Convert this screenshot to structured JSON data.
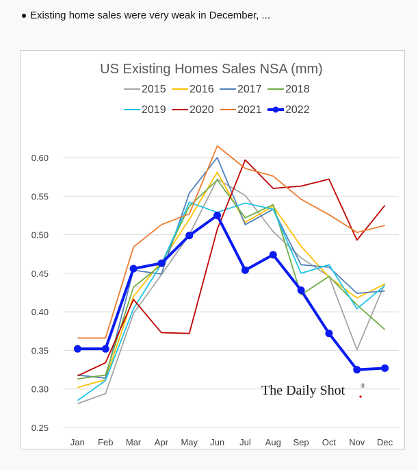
{
  "bullet": {
    "text": "Existing home sales were very weak in December, ..."
  },
  "watermark": {
    "text": "The Daily Shot",
    "mark": "®"
  },
  "chart_data": {
    "type": "line",
    "title": "US Existing Homes Sales NSA (mm)",
    "xlabel": "",
    "ylabel": "",
    "categories": [
      "Jan",
      "Feb",
      "Mar",
      "Apr",
      "May",
      "Jun",
      "Jul",
      "Aug",
      "Sep",
      "Oct",
      "Nov",
      "Dec"
    ],
    "ylim": [
      0.25,
      0.6
    ],
    "yticks": [
      "0.60",
      "0.55",
      "0.50",
      "0.45",
      "0.40",
      "0.35",
      "0.30",
      "0.25"
    ],
    "ytick_values": [
      0.6,
      0.55,
      0.5,
      0.45,
      0.4,
      0.35,
      0.3,
      0.25
    ],
    "grid": "horizontal",
    "legend_position": "top",
    "series": [
      {
        "name": "2015",
        "color": "#a6a6a6",
        "values": [
          0.281,
          0.294,
          0.398,
          0.448,
          0.5,
          0.572,
          0.551,
          0.504,
          0.47,
          0.446,
          0.351,
          0.437
        ]
      },
      {
        "name": "2016",
        "color": "#ffc000",
        "values": [
          0.302,
          0.312,
          0.42,
          0.465,
          0.52,
          0.581,
          0.516,
          0.537,
          0.485,
          0.445,
          0.418,
          0.436
        ]
      },
      {
        "name": "2017",
        "color": "#4f81bd",
        "values": [
          0.318,
          0.314,
          0.454,
          0.449,
          0.554,
          0.6,
          0.513,
          0.533,
          0.461,
          0.458,
          0.424,
          0.427
        ]
      },
      {
        "name": "2018",
        "color": "#70ad47",
        "values": [
          0.313,
          0.318,
          0.432,
          0.461,
          0.537,
          0.571,
          0.522,
          0.539,
          0.422,
          0.446,
          0.409,
          0.377
        ]
      },
      {
        "name": "2019",
        "color": "#21c4e9",
        "values": [
          0.285,
          0.311,
          0.404,
          0.462,
          0.542,
          0.529,
          0.541,
          0.533,
          0.45,
          0.461,
          0.404,
          0.434
        ]
      },
      {
        "name": "2020",
        "color": "#c00000",
        "values": [
          0.317,
          0.334,
          0.416,
          0.373,
          0.372,
          0.507,
          0.597,
          0.56,
          0.563,
          0.572,
          0.493,
          0.538
        ]
      },
      {
        "name": "2021",
        "color": "#ed7d31",
        "values": [
          0.366,
          0.366,
          0.484,
          0.513,
          0.527,
          0.615,
          0.586,
          0.576,
          0.546,
          0.526,
          0.503,
          0.512
        ]
      },
      {
        "name": "2022",
        "color": "#0a1cf0",
        "highlight": true,
        "values": [
          0.352,
          0.352,
          0.456,
          0.463,
          0.499,
          0.525,
          0.454,
          0.474,
          0.428,
          0.372,
          0.325,
          0.327
        ]
      }
    ]
  }
}
